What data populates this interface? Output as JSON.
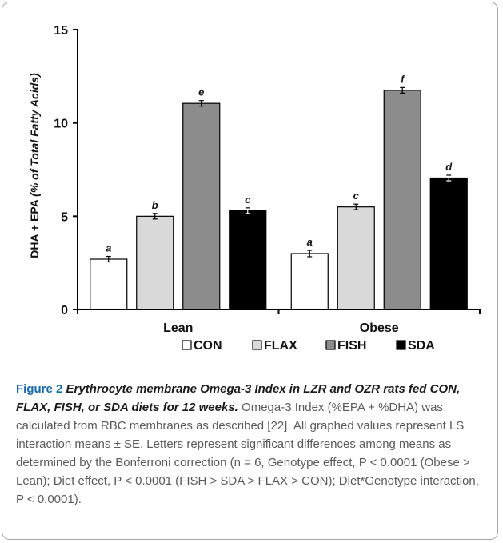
{
  "chart_data": {
    "type": "bar",
    "categories": [
      "Lean",
      "Obese"
    ],
    "series": [
      {
        "name": "CON",
        "color": "#ffffff",
        "values": [
          2.7,
          3.0
        ],
        "errors": [
          0.15,
          0.17
        ],
        "labels": [
          "a",
          "a"
        ]
      },
      {
        "name": "FLAX",
        "color": "#d9d9d9",
        "values": [
          5.0,
          5.5
        ],
        "errors": [
          0.15,
          0.15
        ],
        "labels": [
          "b",
          "c"
        ]
      },
      {
        "name": "FISH",
        "color": "#8c8c8c",
        "values": [
          11.05,
          11.75
        ],
        "errors": [
          0.15,
          0.15
        ],
        "labels": [
          "e",
          "f"
        ]
      },
      {
        "name": "SDA",
        "color": "#000000",
        "values": [
          5.3,
          7.05
        ],
        "errors": [
          0.15,
          0.15
        ],
        "labels": [
          "c",
          "d"
        ]
      }
    ],
    "ylabel_main": "DHA + EPA ",
    "ylabel_italic": "(% of Total Fatty Acids)",
    "ylim": [
      0,
      15
    ],
    "yticks": [
      "0",
      "5",
      "10",
      "15"
    ],
    "legend_position": "bottom",
    "grid": false
  },
  "caption": {
    "figure_label": "Figure 2",
    "title": "Erythrocyte membrane Omega-3 Index in LZR and OZR rats fed CON, FLAX, FISH, or SDA diets for 12 weeks.",
    "body": "Omega-3 Index (%EPA + %DHA) was calculated from RBC membranes as described [22]. All graphed values represent LS interaction means ± SE. Letters represent significant differences among means as determined by the Bonferroni correction (n = 6, Genotype effect, P < 0.0001 (Obese > Lean); Diet effect, P < 0.0001 (FISH > SDA > FLAX > CON); Diet*Genotype interaction, P < 0.0001)."
  }
}
